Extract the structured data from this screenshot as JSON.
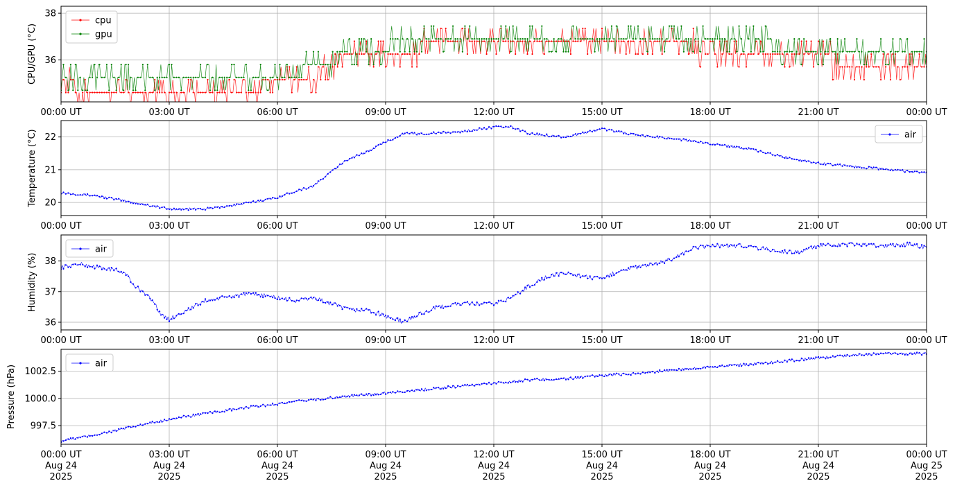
{
  "chart_data": [
    {
      "type": "line",
      "ylabel": "CPU/GPU (°C)",
      "ylim": [
        34.2,
        38.3
      ],
      "yticks": [
        36,
        38
      ],
      "ytick_labels": [
        "36",
        "38"
      ],
      "xlim": [
        "2025-08-24 00:00",
        "2025-08-25 00:00"
      ],
      "xtick_labels": [
        "00:00 UT",
        "03:00 UT",
        "06:00 UT",
        "09:00 UT",
        "12:00 UT",
        "15:00 UT",
        "18:00 UT",
        "21:00 UT",
        "00:00 UT"
      ],
      "grid": true,
      "legend_position": "upper-left",
      "series": [
        {
          "name": "cpu",
          "color": "#ff0000",
          "x_hours": [
            0,
            0.5,
            1.0,
            1.5,
            2.0,
            2.5,
            3.0,
            3.5,
            4.0,
            4.5,
            5.0,
            5.5,
            6.0,
            6.5,
            7.0,
            7.5,
            8.0,
            8.5,
            9.0,
            9.5,
            10.0,
            11.0,
            12.0,
            13.0,
            14.0,
            15.0,
            16.0,
            17.0,
            17.5,
            18.0,
            19.0,
            20.0,
            21.0,
            22.0,
            23.0,
            24.0
          ],
          "values": [
            35.1,
            34.9,
            34.9,
            34.9,
            34.9,
            34.9,
            34.9,
            34.9,
            34.9,
            34.9,
            34.9,
            34.9,
            35.1,
            35.1,
            35.4,
            35.9,
            36.4,
            36.4,
            36.4,
            36.4,
            36.6,
            36.6,
            36.8,
            36.6,
            36.6,
            36.6,
            36.6,
            36.6,
            36.6,
            36.4,
            36.4,
            36.4,
            36.1,
            35.9,
            35.9,
            35.9
          ]
        },
        {
          "name": "gpu",
          "color": "#008000",
          "x_hours": [
            0,
            0.5,
            1.0,
            1.5,
            2.0,
            2.5,
            3.0,
            3.5,
            4.0,
            4.5,
            5.0,
            5.5,
            6.0,
            6.5,
            7.0,
            7.5,
            8.0,
            8.5,
            9.0,
            9.5,
            10.0,
            11.0,
            12.0,
            13.0,
            14.0,
            15.0,
            16.0,
            17.0,
            17.5,
            18.0,
            19.0,
            20.0,
            21.0,
            22.0,
            23.0,
            24.0
          ],
          "values": [
            35.4,
            35.4,
            35.4,
            35.4,
            35.4,
            35.4,
            35.4,
            35.4,
            35.4,
            35.4,
            35.4,
            35.4,
            35.4,
            35.4,
            35.6,
            35.9,
            36.5,
            36.5,
            36.5,
            37.0,
            37.0,
            37.0,
            37.0,
            37.0,
            37.0,
            37.0,
            37.0,
            37.0,
            37.0,
            37.0,
            36.8,
            36.5,
            36.2,
            36.2,
            36.2,
            36.2
          ]
        }
      ]
    },
    {
      "type": "line",
      "ylabel": "Temperature (°C)",
      "ylim": [
        19.6,
        22.5
      ],
      "yticks": [
        20,
        21,
        22
      ],
      "ytick_labels": [
        "20",
        "21",
        "22"
      ],
      "xlim": [
        "2025-08-24 00:00",
        "2025-08-25 00:00"
      ],
      "xtick_labels": [
        "00:00 UT",
        "03:00 UT",
        "06:00 UT",
        "09:00 UT",
        "12:00 UT",
        "15:00 UT",
        "18:00 UT",
        "21:00 UT",
        "00:00 UT"
      ],
      "grid": true,
      "legend_position": "upper-right",
      "series": [
        {
          "name": "air",
          "color": "#0000ff",
          "x_hours": [
            0,
            1,
            2,
            3,
            4,
            5,
            6,
            6.5,
            7,
            7.5,
            8,
            8.5,
            9,
            9.5,
            10,
            11,
            12,
            12.5,
            13,
            14,
            15,
            16,
            17,
            18,
            19,
            20,
            21,
            22,
            23,
            24
          ],
          "values": [
            20.3,
            20.2,
            20.0,
            19.8,
            19.8,
            19.95,
            20.15,
            20.35,
            20.5,
            20.95,
            21.35,
            21.55,
            21.85,
            22.1,
            22.1,
            22.15,
            22.3,
            22.3,
            22.1,
            22.0,
            22.25,
            22.05,
            21.95,
            21.8,
            21.65,
            21.4,
            21.2,
            21.1,
            21.0,
            20.9
          ]
        }
      ]
    },
    {
      "type": "line",
      "ylabel": "Humidity (%)",
      "ylim": [
        35.75,
        38.85
      ],
      "yticks": [
        36,
        37,
        38
      ],
      "ytick_labels": [
        "36",
        "37",
        "38"
      ],
      "xlim": [
        "2025-08-24 00:00",
        "2025-08-25 00:00"
      ],
      "xtick_labels": [
        "00:00 UT",
        "03:00 UT",
        "06:00 UT",
        "09:00 UT",
        "12:00 UT",
        "15:00 UT",
        "18:00 UT",
        "21:00 UT",
        "00:00 UT"
      ],
      "grid": true,
      "legend_position": "upper-left",
      "series": [
        {
          "name": "air",
          "color": "#0000ff",
          "x_hours": [
            0,
            0.5,
            1,
            1.5,
            1.8,
            2,
            2.3,
            2.6,
            2.8,
            3.0,
            3.5,
            4,
            4.5,
            5,
            5.5,
            6,
            6.5,
            7,
            7.5,
            8,
            8.5,
            9,
            9.5,
            10,
            10.5,
            11,
            11.5,
            12,
            12.5,
            13,
            13.5,
            14,
            14.5,
            15,
            15.5,
            16,
            16.5,
            17,
            17.5,
            18,
            18.5,
            19,
            19.5,
            20,
            20.5,
            21,
            21.5,
            22,
            22.5,
            23,
            23.5,
            24
          ],
          "values": [
            37.8,
            37.9,
            37.8,
            37.7,
            37.6,
            37.2,
            37.0,
            36.6,
            36.2,
            36.1,
            36.4,
            36.7,
            36.8,
            36.9,
            36.9,
            36.8,
            36.7,
            36.8,
            36.6,
            36.4,
            36.4,
            36.2,
            36.0,
            36.3,
            36.5,
            36.6,
            36.6,
            36.6,
            36.8,
            37.2,
            37.5,
            37.6,
            37.5,
            37.4,
            37.7,
            37.8,
            37.9,
            38.1,
            38.4,
            38.5,
            38.5,
            38.5,
            38.4,
            38.3,
            38.3,
            38.5,
            38.5,
            38.55,
            38.5,
            38.5,
            38.55,
            38.45
          ]
        }
      ]
    },
    {
      "type": "line",
      "ylabel": "Pressure (hPa)",
      "ylim": [
        995.8,
        1004.5
      ],
      "yticks": [
        997.5,
        1000.0,
        1002.5
      ],
      "ytick_labels": [
        "997.5",
        "1000.0",
        "1002.5"
      ],
      "xlim": [
        "2025-08-24 00:00",
        "2025-08-25 00:00"
      ],
      "xtick_labels": [
        "00:00 UT\nAug 24\n2025",
        "03:00 UT\nAug 24\n2025",
        "06:00 UT\nAug 24\n2025",
        "09:00 UT\nAug 24\n2025",
        "12:00 UT\nAug 24\n2025",
        "15:00 UT\nAug 24\n2025",
        "18:00 UT\nAug 24\n2025",
        "21:00 UT\nAug 24\n2025",
        "00:00 UT\nAug 25\n2025"
      ],
      "grid": true,
      "legend_position": "upper-left",
      "series": [
        {
          "name": "air",
          "color": "#0000ff",
          "x_hours": [
            0,
            1,
            2,
            3,
            4,
            5,
            6,
            7,
            8,
            9,
            10,
            11,
            12,
            13,
            14,
            15,
            16,
            17,
            18,
            19,
            20,
            21,
            22,
            23,
            24
          ],
          "values": [
            996.1,
            996.7,
            997.4,
            998.1,
            998.6,
            999.1,
            999.5,
            999.9,
            1000.2,
            1000.5,
            1000.8,
            1001.1,
            1001.4,
            1001.7,
            1001.8,
            1002.1,
            1002.3,
            1002.6,
            1002.9,
            1003.1,
            1003.4,
            1003.7,
            1004.0,
            1004.1,
            1004.1
          ]
        }
      ]
    }
  ]
}
